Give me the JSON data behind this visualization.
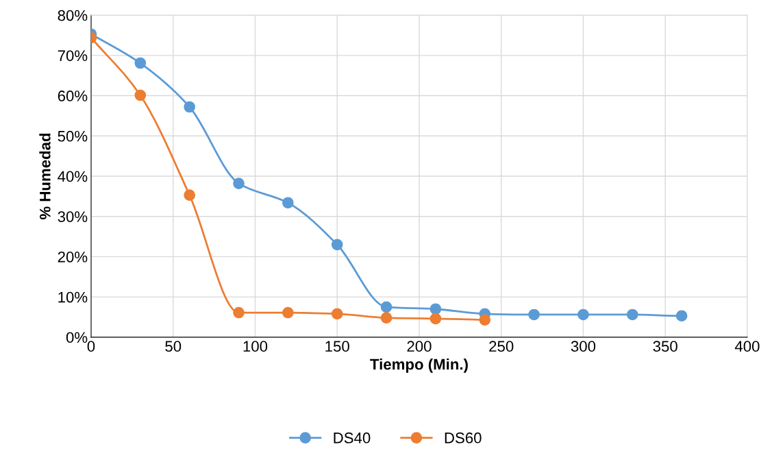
{
  "chart_data": {
    "type": "line",
    "xlabel": "Tiempo (Min.)",
    "ylabel": "% Humedad",
    "xlim": [
      0,
      400
    ],
    "xticks": [
      0,
      50,
      100,
      150,
      200,
      250,
      300,
      350,
      400
    ],
    "ylim": [
      0,
      80
    ],
    "yticks": [
      {
        "value": 0,
        "label": "0%"
      },
      {
        "value": 10,
        "label": "10%"
      },
      {
        "value": 20,
        "label": "20%"
      },
      {
        "value": 30,
        "label": "30%"
      },
      {
        "value": 40,
        "label": "40%"
      },
      {
        "value": 50,
        "label": "50%"
      },
      {
        "value": 60,
        "label": "60%"
      },
      {
        "value": 70,
        "label": "70%"
      },
      {
        "value": 80,
        "label": "80%"
      }
    ],
    "grid": true,
    "legend": "bottom",
    "marker": "circle",
    "line_style": "solid",
    "series": [
      {
        "name": "DS40",
        "color": "#5b9bd5",
        "x": [
          0,
          30,
          60,
          90,
          120,
          150,
          180,
          210,
          240,
          270,
          300,
          330,
          360
        ],
        "values": [
          75.3,
          68.1,
          57.2,
          38.2,
          33.4,
          23.0,
          7.5,
          7.0,
          5.8,
          5.6,
          5.6,
          5.6,
          5.3
        ]
      },
      {
        "name": "DS60",
        "color": "#ed7d31",
        "x": [
          0,
          30,
          60,
          90,
          120,
          150,
          180,
          210,
          240
        ],
        "values": [
          74.4,
          60.1,
          35.3,
          6.1,
          6.1,
          5.8,
          4.8,
          4.6,
          4.3
        ]
      }
    ]
  }
}
